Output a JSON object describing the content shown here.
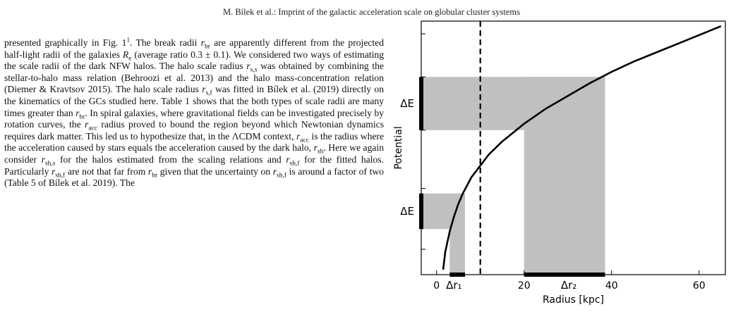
{
  "header": {
    "running_head": "M. Bílek et al.: Imprint of the galactic acceleration scale on globular cluster systems"
  },
  "body": {
    "segments": [
      [
        "t",
        "presented graphically in Fig. 1"
      ],
      [
        "sup",
        "1"
      ],
      [
        "t",
        ". The break radii "
      ],
      [
        "i",
        "r"
      ],
      [
        "sub",
        "br"
      ],
      [
        "t",
        " are apparently different from the projected half-light radii of the galaxies "
      ],
      [
        "i",
        "R"
      ],
      [
        "sub",
        "e"
      ],
      [
        "t",
        " (average ratio 0.3 ± 0.1). We considered two ways of estimating the scale radii of the dark NFW halos. The halo scale radius "
      ],
      [
        "i",
        "r"
      ],
      [
        "sub",
        "s,s"
      ],
      [
        "t",
        " was obtained by combining the stellar-to-halo mass relation (Behroozi et al. 2013) and the halo mass-concentration relation (Diemer & Kravtsov 2015). The halo scale radius "
      ],
      [
        "i",
        "r"
      ],
      [
        "sub",
        "s,f"
      ],
      [
        "t",
        " was fitted in Bílek et al. (2019) directly on the kinematics of the GCs studied here. Table 1 shows that the both types of scale radii are many times greater than "
      ],
      [
        "i",
        "r"
      ],
      [
        "sub",
        "br"
      ],
      [
        "t",
        ". In spiral galaxies, where gravitational fields can be investigated precisely by rotation curves, the "
      ],
      [
        "i",
        "r"
      ],
      [
        "sub",
        "acc"
      ],
      [
        "t",
        " radius proved to bound the region beyond which Newtonian dynamics requires dark matter. This led us to hypothesize that, in the ΛCDM context, "
      ],
      [
        "i",
        "r"
      ],
      [
        "sub",
        "acc"
      ],
      [
        "t",
        " is the radius where the acceleration caused by stars equals the acceleration caused by the dark halo, "
      ],
      [
        "i",
        "r"
      ],
      [
        "sub",
        "sh"
      ],
      [
        "t",
        ". Here we again consider "
      ],
      [
        "i",
        "r"
      ],
      [
        "sub",
        "sh,s"
      ],
      [
        "t",
        " for the halos estimated from the scaling relations and "
      ],
      [
        "i",
        "r"
      ],
      [
        "sub",
        "sh,f"
      ],
      [
        "t",
        " for the fitted halos. Particularly "
      ],
      [
        "i",
        "r"
      ],
      [
        "sub",
        "sh,f"
      ],
      [
        "t",
        " are not that far from "
      ],
      [
        "i",
        "r"
      ],
      [
        "sub",
        "br"
      ],
      [
        "t",
        " given that the uncertainty on "
      ],
      [
        "i",
        "r"
      ],
      [
        "sub",
        "sh,f"
      ],
      [
        "t",
        " is around a factor of two (Table 5 of Bílek et al. 2019). The"
      ]
    ]
  },
  "chart_data": {
    "type": "line",
    "xlabel": "Radius [kpc]",
    "ylabel": "Potential",
    "xlim": [
      -3.5,
      66
    ],
    "ylim": [
      0,
      1
    ],
    "xticks": [
      0,
      20,
      40,
      60
    ],
    "xtick_labels": [
      "0",
      "20",
      "40",
      "60"
    ],
    "series": [
      {
        "x": [
          1.5,
          2,
          3,
          4,
          5,
          6,
          8,
          10,
          12,
          15,
          20,
          25,
          30,
          35,
          40,
          45,
          50,
          55,
          60,
          65
        ],
        "y": [
          0.02,
          0.09,
          0.17,
          0.23,
          0.28,
          0.32,
          0.385,
          0.43,
          0.475,
          0.525,
          0.595,
          0.655,
          0.705,
          0.755,
          0.8,
          0.84,
          0.875,
          0.91,
          0.945,
          0.98
        ]
      }
    ],
    "vline": {
      "x": 10
    },
    "bands": [
      {
        "x0": 3,
        "x1": 6.5,
        "y0": 0,
        "y1": 0.32
      },
      {
        "x0": 20,
        "x1": 38.5,
        "y0": 0,
        "y1": 0.78
      },
      {
        "x0": -3.5,
        "x1": 6.5,
        "y0": 0.18,
        "y1": 0.32
      },
      {
        "x0": -3.5,
        "x1": 38.5,
        "y0": 0.57,
        "y1": 0.78
      }
    ],
    "delta_r": [
      {
        "label": "Δr₁",
        "x0": 3,
        "x1": 6.5
      },
      {
        "label": "Δr₂",
        "x0": 20,
        "x1": 38.5
      }
    ],
    "delta_E": [
      {
        "label": "ΔE",
        "y0": 0.57,
        "y1": 0.78
      },
      {
        "label": "ΔE",
        "y0": 0.18,
        "y1": 0.32
      }
    ],
    "grid": false
  }
}
